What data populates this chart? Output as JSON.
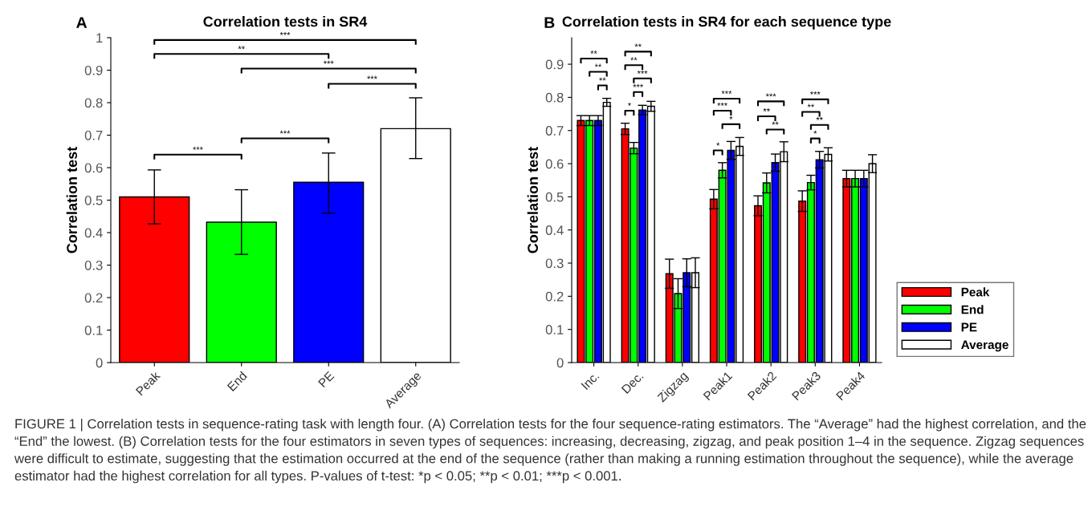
{
  "chart_data": [
    {
      "type": "bar",
      "title": "Correlation tests in SR4",
      "ylabel": "Correlation test",
      "categories": [
        "Peak",
        "End",
        "PE",
        "Average"
      ],
      "values": [
        0.51,
        0.432,
        0.555,
        0.72
      ],
      "errors": [
        [
          0.427,
          0.593
        ],
        [
          0.333,
          0.532
        ],
        [
          0.46,
          0.645
        ],
        [
          0.628,
          0.815
        ]
      ],
      "colors": [
        "#ff0000",
        "#00ff00",
        "#0000ff",
        "#ffffff"
      ],
      "ylim": [
        0,
        1
      ],
      "yticks": [
        0,
        0.1,
        0.2,
        0.3,
        0.4,
        0.5,
        0.6,
        0.7,
        0.8,
        0.9,
        1
      ],
      "grid": false,
      "legend": false,
      "annotations": [
        "A",
        "***",
        "**",
        "***",
        "***",
        "***",
        "***"
      ]
    },
    {
      "type": "bar",
      "title": "Correlation tests in SR4 for each sequence type",
      "ylabel": "Correlation test",
      "categories": [
        "Inc.",
        "Dec.",
        "Zigzag",
        "Peak1",
        "Peak2",
        "Peak3",
        "Peak4"
      ],
      "series": [
        {
          "name": "Peak",
          "color": "#ff0000",
          "values": [
            0.73,
            0.705,
            0.268,
            0.493,
            0.473,
            0.487,
            0.555
          ],
          "errors": [
            0.015,
            0.017,
            0.044,
            0.029,
            0.03,
            0.031,
            0.025
          ]
        },
        {
          "name": "End",
          "color": "#00ff00",
          "values": [
            0.73,
            0.647,
            0.208,
            0.58,
            0.542,
            0.543,
            0.555
          ],
          "errors": [
            0.015,
            0.017,
            0.045,
            0.023,
            0.03,
            0.022,
            0.025
          ]
        },
        {
          "name": "PE",
          "color": "#0000ff",
          "values": [
            0.73,
            0.762,
            0.271,
            0.64,
            0.603,
            0.612,
            0.555
          ],
          "errors": [
            0.015,
            0.014,
            0.042,
            0.027,
            0.026,
            0.025,
            0.025
          ]
        },
        {
          "name": "Average",
          "color": "#ffffff",
          "values": [
            0.785,
            0.773,
            0.271,
            0.652,
            0.636,
            0.628,
            0.6
          ],
          "errors": [
            0.012,
            0.015,
            0.045,
            0.027,
            0.03,
            0.02,
            0.027
          ]
        }
      ],
      "ylim": [
        0,
        0.98
      ],
      "yticks": [
        0,
        0.1,
        0.2,
        0.3,
        0.4,
        0.5,
        0.6,
        0.7,
        0.8,
        0.9
      ],
      "grid": false,
      "legend": "right",
      "annotations": [
        "B",
        "**",
        "**",
        "**",
        "**",
        "**",
        "***",
        "***",
        "*",
        "***",
        "***",
        "*",
        "*",
        "***",
        "**",
        "**",
        "***",
        "**",
        "**",
        "*",
        "FIGURE 1 | Correlation tests in sequence-rating task with length four. (A) Correlation tests for the four sequence-rating estimators. The “Average” had the highest correlation, and the “End” the lowest. (B) Correlation tests for the four estimators in seven types of sequences: increasing, decreasing, zigzag, and peak position 1–4 in the sequence. Zigzag sequences were difficult to estimate, suggesting that the estimation occurred at the end of the sequence (rather than making a running estimation throughout the sequence), while the average estimator had the highest correlation for all types. P-values of t-test: *p < 0.05; **p < 0.01; ***p < 0.001."
      ]
    }
  ]
}
